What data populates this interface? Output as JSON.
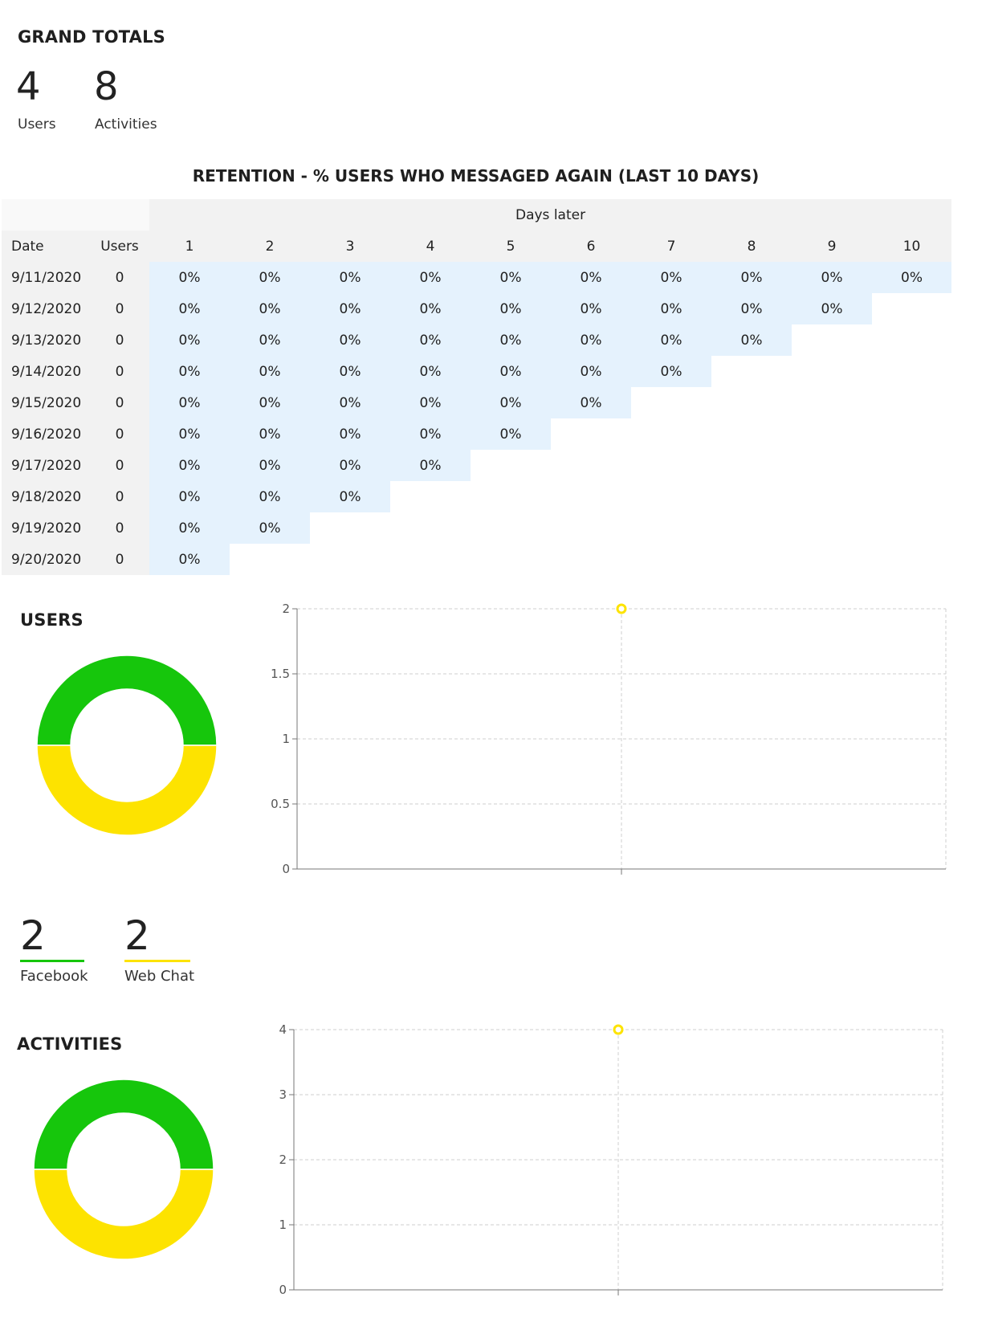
{
  "grand_totals": {
    "title": "GRAND TOTALS",
    "users_value": "4",
    "users_label": "Users",
    "activities_value": "8",
    "activities_label": "Activities"
  },
  "retention": {
    "title": "RETENTION - % USERS WHO MESSAGED AGAIN (LAST 10 DAYS)",
    "days_later_label": "Days later",
    "date_header": "Date",
    "users_header": "Users",
    "day_headers": [
      "1",
      "2",
      "3",
      "4",
      "5",
      "6",
      "7",
      "8",
      "9",
      "10"
    ],
    "rows": [
      {
        "date": "9/11/2020",
        "users": "0",
        "values": [
          "0%",
          "0%",
          "0%",
          "0%",
          "0%",
          "0%",
          "0%",
          "0%",
          "0%",
          "0%"
        ]
      },
      {
        "date": "9/12/2020",
        "users": "0",
        "values": [
          "0%",
          "0%",
          "0%",
          "0%",
          "0%",
          "0%",
          "0%",
          "0%",
          "0%"
        ]
      },
      {
        "date": "9/13/2020",
        "users": "0",
        "values": [
          "0%",
          "0%",
          "0%",
          "0%",
          "0%",
          "0%",
          "0%",
          "0%"
        ]
      },
      {
        "date": "9/14/2020",
        "users": "0",
        "values": [
          "0%",
          "0%",
          "0%",
          "0%",
          "0%",
          "0%",
          "0%"
        ]
      },
      {
        "date": "9/15/2020",
        "users": "0",
        "values": [
          "0%",
          "0%",
          "0%",
          "0%",
          "0%",
          "0%"
        ]
      },
      {
        "date": "9/16/2020",
        "users": "0",
        "values": [
          "0%",
          "0%",
          "0%",
          "0%",
          "0%"
        ]
      },
      {
        "date": "9/17/2020",
        "users": "0",
        "values": [
          "0%",
          "0%",
          "0%",
          "0%"
        ]
      },
      {
        "date": "9/18/2020",
        "users": "0",
        "values": [
          "0%",
          "0%",
          "0%"
        ]
      },
      {
        "date": "9/19/2020",
        "users": "0",
        "values": [
          "0%",
          "0%"
        ]
      },
      {
        "date": "9/20/2020",
        "users": "0",
        "values": [
          "0%"
        ]
      }
    ]
  },
  "users_section": {
    "title": "USERS",
    "facebook_value": "2",
    "facebook_label": "Facebook",
    "webchat_value": "2",
    "webchat_label": "Web Chat"
  },
  "activities_section": {
    "title": "ACTIVITIES"
  },
  "colors": {
    "facebook": "#16c60c",
    "webchat": "#fde300",
    "table_blue": "#e5f2fd",
    "table_grey": "#f2f2f2"
  },
  "chart_data": [
    {
      "type": "pie",
      "variant": "donut",
      "labels": [
        "Facebook",
        "Web Chat"
      ],
      "values": [
        2,
        2
      ],
      "colors": [
        "#16c60c",
        "#fde300"
      ]
    },
    {
      "type": "scatter",
      "ylim": [
        0,
        2
      ],
      "yticks": [
        "0",
        "0.5",
        "1",
        "1.5",
        "2"
      ],
      "series": [
        {
          "values": [
            2
          ],
          "color": "#fde300"
        }
      ],
      "grid": true
    },
    {
      "type": "pie",
      "variant": "donut",
      "labels": [
        "Facebook",
        "Web Chat"
      ],
      "values": [
        4,
        4
      ],
      "colors": [
        "#16c60c",
        "#fde300"
      ]
    },
    {
      "type": "scatter",
      "ylim": [
        0,
        4
      ],
      "yticks": [
        "0",
        "1",
        "2",
        "3",
        "4"
      ],
      "series": [
        {
          "values": [
            4
          ],
          "color": "#fde300"
        }
      ],
      "grid": true
    }
  ]
}
